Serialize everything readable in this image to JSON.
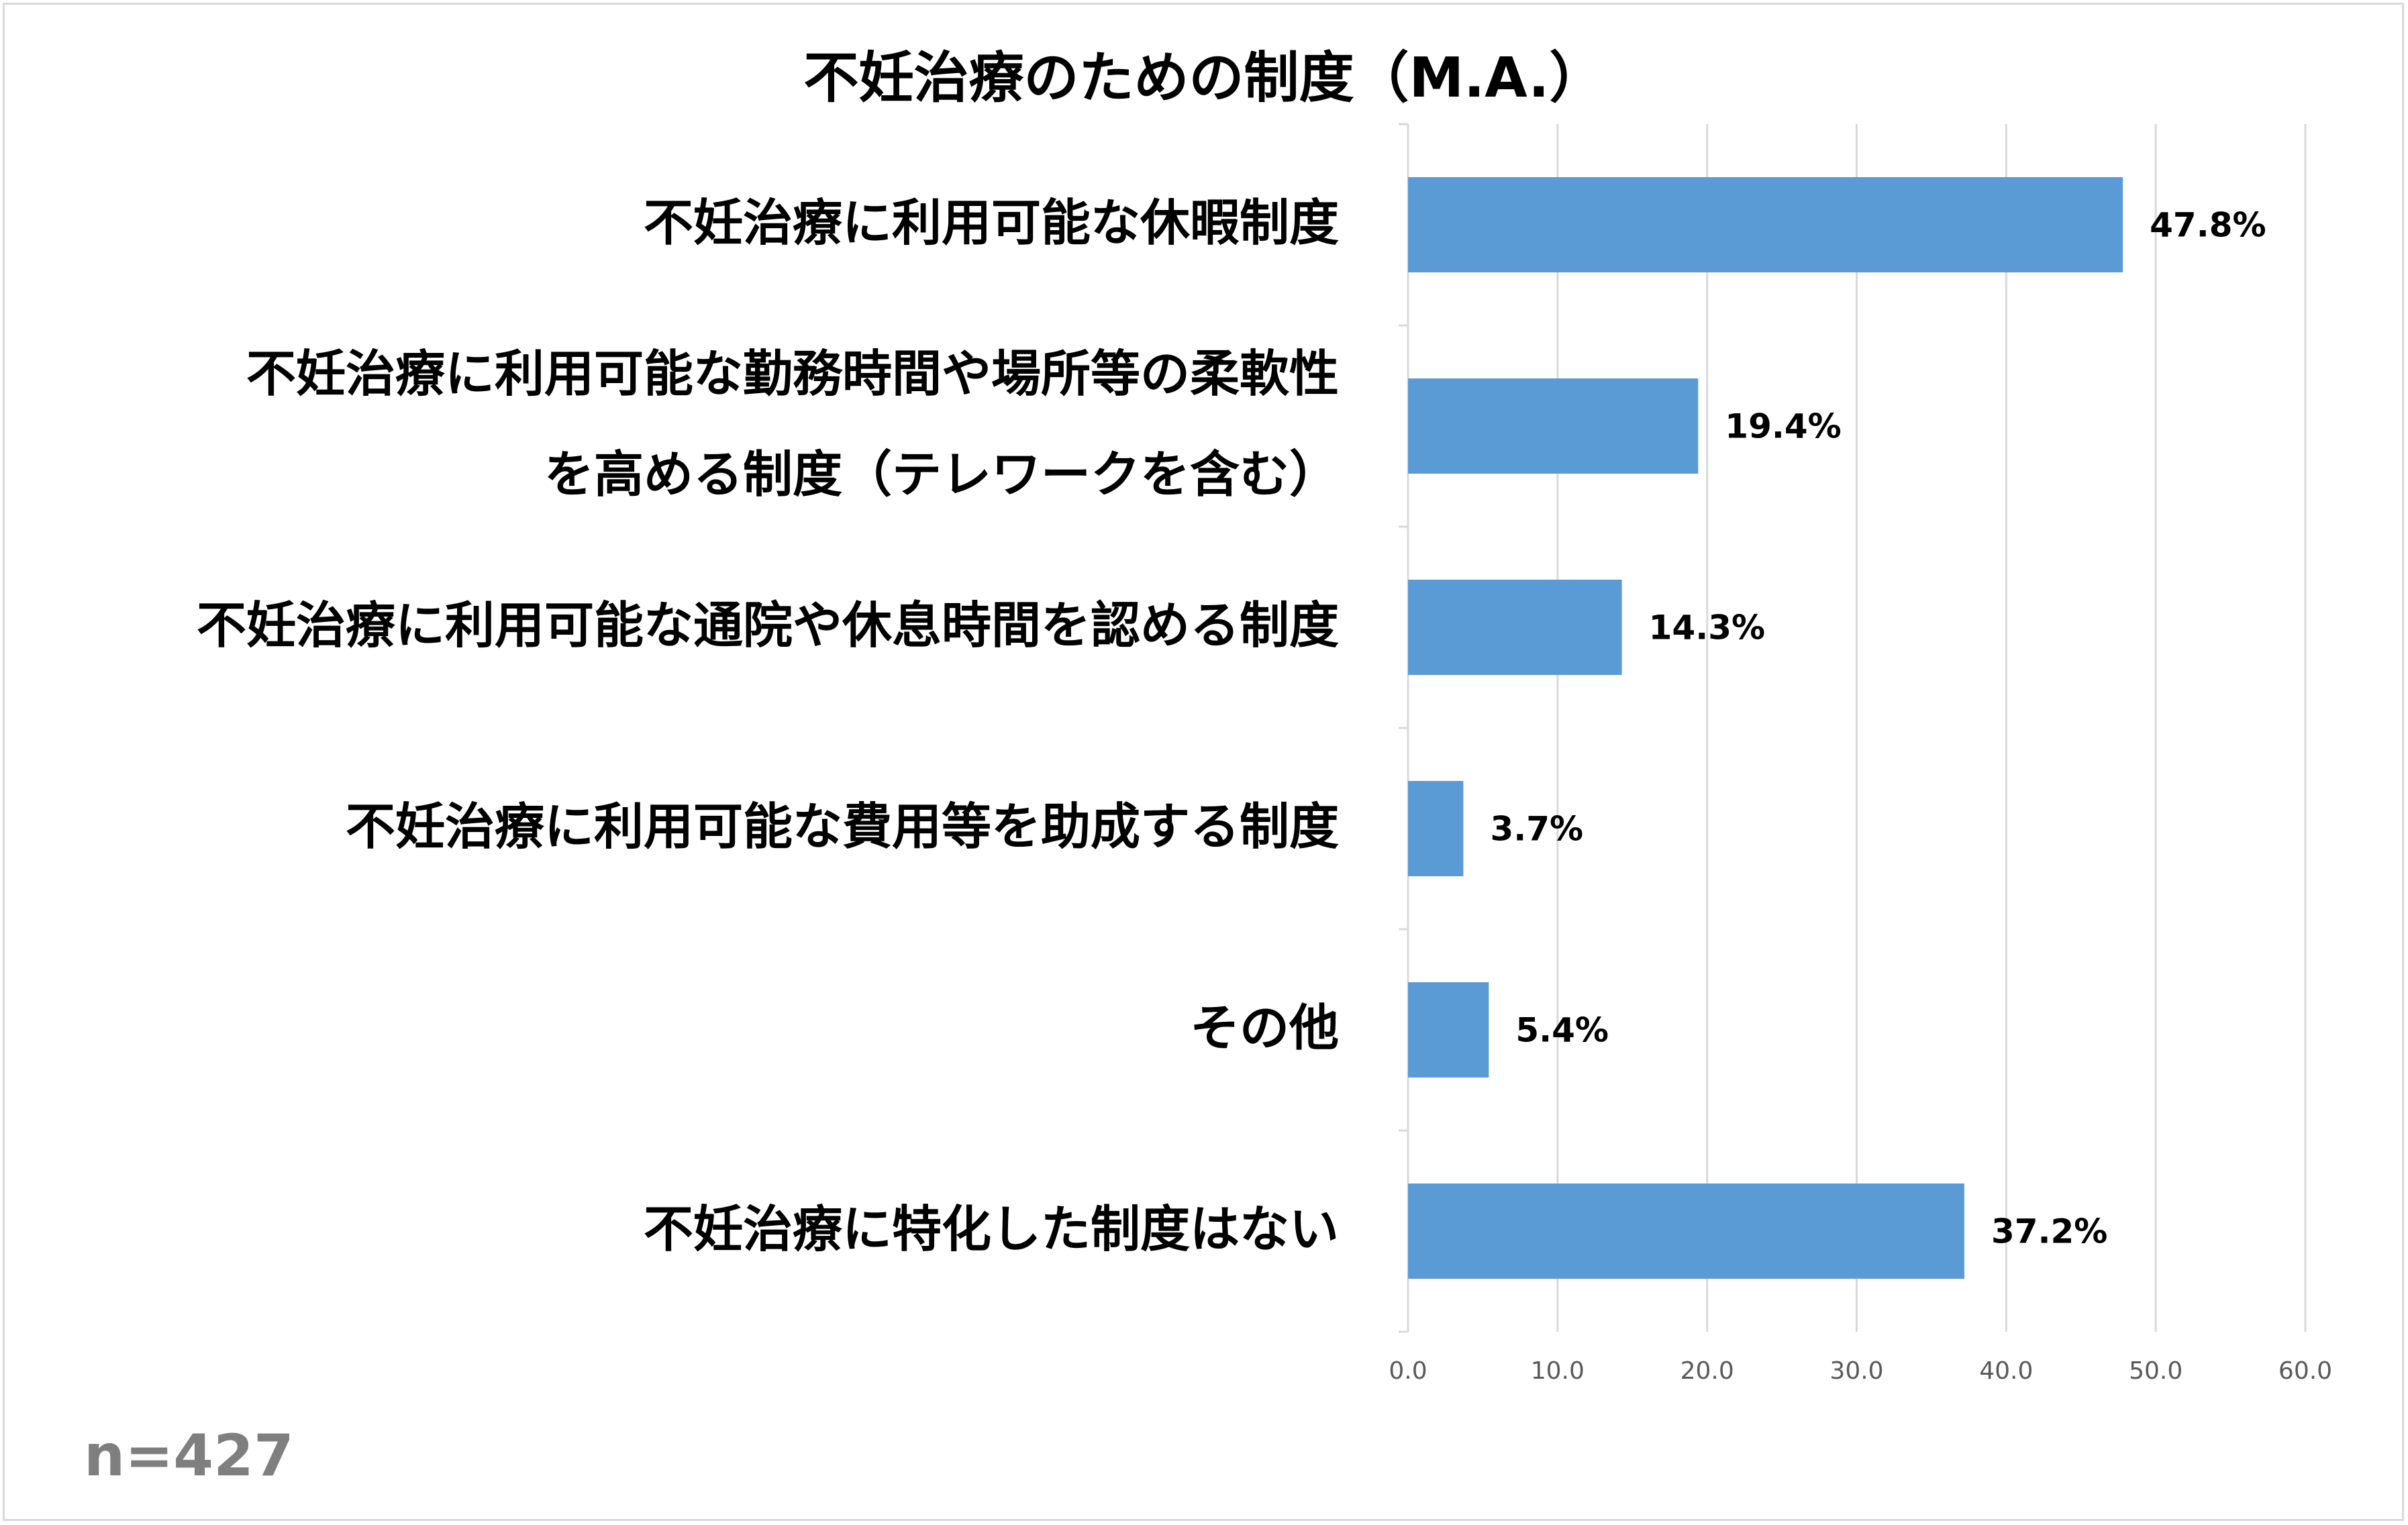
{
  "chart_data": {
    "type": "bar",
    "orientation": "horizontal",
    "title": "不妊治療のための制度（M.A.）",
    "categories": [
      [
        "不妊治療に利用可能な休暇制度"
      ],
      [
        "不妊治療に利用可能な勤務時間や場所等の柔軟性",
        "を高める制度（テレワークを含む）"
      ],
      [
        "不妊治療に利用可能な通院や休息時間を認める制度"
      ],
      [
        "不妊治療に利用可能な費用等を助成する制度"
      ],
      [
        "その他"
      ],
      [
        "不妊治療に特化した制度はない"
      ]
    ],
    "values": [
      47.8,
      19.4,
      14.3,
      3.7,
      5.4,
      37.2
    ],
    "data_labels": [
      "47.8%",
      "19.4%",
      "14.3%",
      "3.7%",
      "5.4%",
      "37.2%"
    ],
    "xlim": [
      0,
      60
    ],
    "x_ticks": [
      "0.0",
      "10.0",
      "20.0",
      "30.0",
      "40.0",
      "50.0",
      "60.0"
    ],
    "grid": true,
    "bar_color": "#5b9bd5",
    "grid_color": "#d9d9d9"
  },
  "footnote": "n=427"
}
